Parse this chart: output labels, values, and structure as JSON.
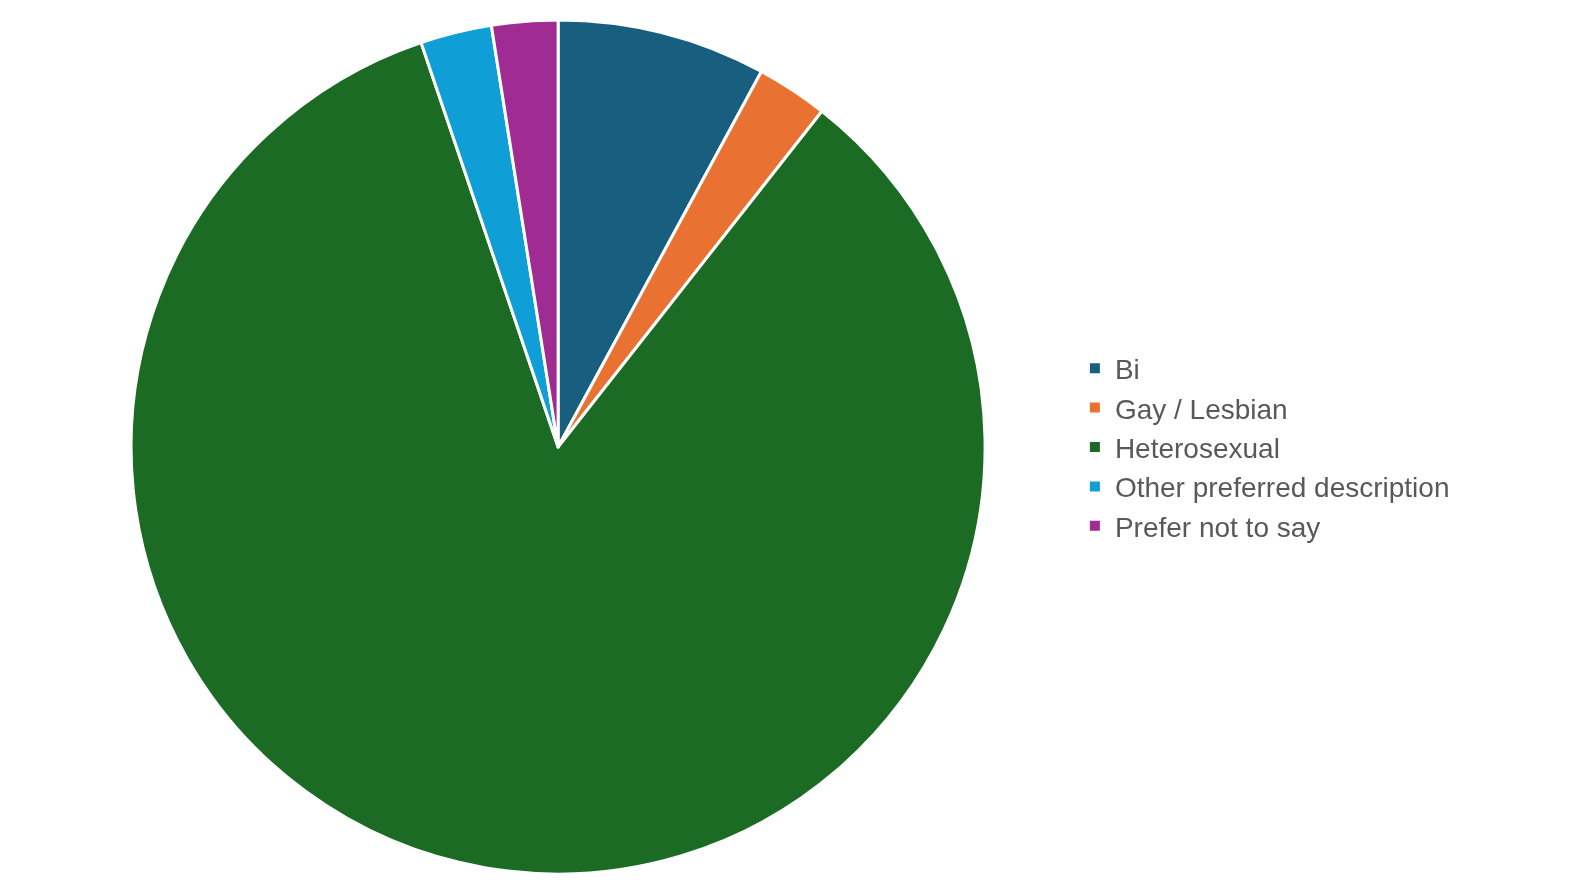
{
  "chart_data": {
    "type": "pie",
    "categories": [
      "Bi",
      "Gay / Lesbian",
      "Heterosexual",
      "Other preferred description",
      "Prefer not to say"
    ],
    "values": [
      7.9,
      2.7,
      84.2,
      2.7,
      2.5
    ],
    "colors": [
      "#175e7f",
      "#e97132",
      "#1b6b24",
      "#0f9ed5",
      "#a02b93"
    ],
    "legend": "right"
  }
}
